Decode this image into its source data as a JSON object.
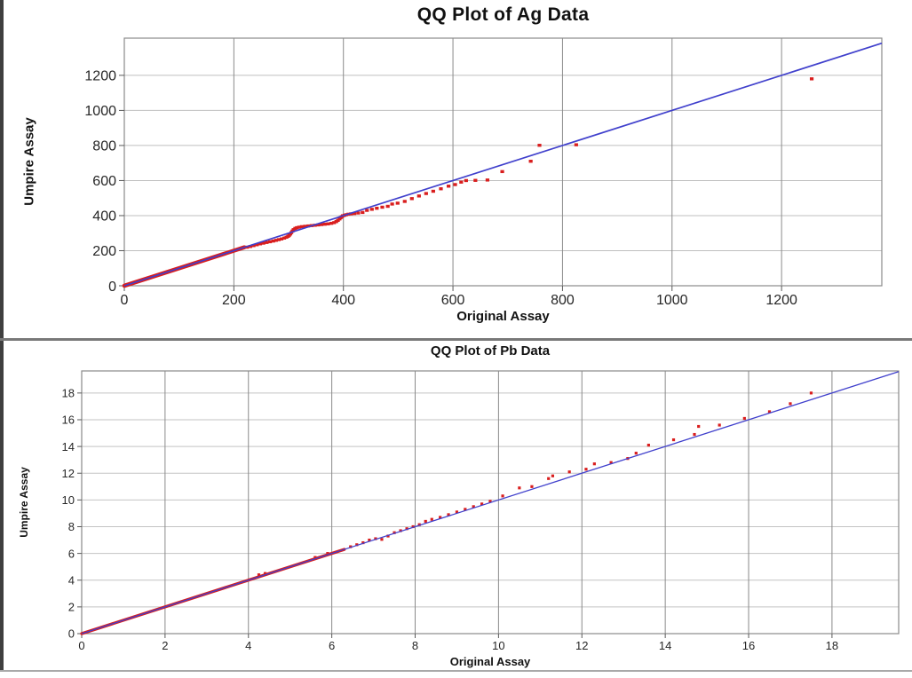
{
  "page": {
    "background": "#ffffff"
  },
  "chart_data": [
    {
      "type": "scatter",
      "title": "QQ Plot of Ag Data",
      "xlabel": "Original Assay",
      "ylabel": "Umpire Assay",
      "xlim": [
        0,
        1383
      ],
      "ylim": [
        0,
        1412
      ],
      "xticks": [
        0,
        200,
        400,
        600,
        800,
        1000,
        1200
      ],
      "yticks": [
        0,
        200,
        400,
        600,
        800,
        1000,
        1200
      ],
      "grid": true,
      "legend": "none",
      "colors": {
        "points": "#d91e1e",
        "reference_line": "#4040cc"
      },
      "series": [
        {
          "name": "Ag quantile pairs",
          "marker": "square",
          "color": "#d91e1e",
          "dense_run": {
            "from": [
              0,
              0
            ],
            "to": [
              219,
              219
            ]
          },
          "points": [
            [
              224,
              220
            ],
            [
              230,
              224
            ],
            [
              236,
              229
            ],
            [
              242,
              234
            ],
            [
              248,
              239
            ],
            [
              254,
              243
            ],
            [
              260,
              247
            ],
            [
              266,
              251
            ],
            [
              272,
              255
            ],
            [
              277,
              259
            ],
            [
              282,
              263
            ],
            [
              287,
              267
            ],
            [
              292,
              272
            ],
            [
              296,
              277
            ],
            [
              299,
              282
            ],
            [
              301,
              288
            ],
            [
              303,
              295
            ],
            [
              305,
              303
            ],
            [
              307,
              312
            ],
            [
              309,
              320
            ],
            [
              312,
              327
            ],
            [
              315,
              331
            ],
            [
              319,
              334
            ],
            [
              324,
              337
            ],
            [
              330,
              339
            ],
            [
              336,
              341
            ],
            [
              342,
              343
            ],
            [
              348,
              345
            ],
            [
              354,
              347
            ],
            [
              360,
              349
            ],
            [
              366,
              351
            ],
            [
              372,
              353
            ],
            [
              378,
              356
            ],
            [
              383,
              360
            ],
            [
              387,
              366
            ],
            [
              390,
              373
            ],
            [
              393,
              381
            ],
            [
              395,
              388
            ],
            [
              397,
              394
            ],
            [
              399,
              399
            ],
            [
              402,
              402
            ],
            [
              405,
              405
            ],
            [
              409,
              408
            ],
            [
              414,
              410
            ],
            [
              420,
              412
            ],
            [
              427,
              415
            ],
            [
              435,
              418
            ],
            [
              443,
              430
            ],
            [
              452,
              436
            ],
            [
              461,
              442
            ],
            [
              471,
              448
            ],
            [
              481,
              453
            ],
            [
              489,
              466
            ],
            [
              499,
              471
            ],
            [
              512,
              481
            ],
            [
              525,
              497
            ],
            [
              538,
              512
            ],
            [
              551,
              526
            ],
            [
              564,
              539
            ],
            [
              578,
              553
            ],
            [
              592,
              568
            ],
            [
              604,
              577
            ],
            [
              615,
              591
            ],
            [
              624,
              600
            ],
            [
              641,
              601
            ],
            [
              663,
              603
            ],
            [
              690,
              651
            ],
            [
              742,
              710
            ],
            [
              758,
              801
            ],
            [
              825,
              804
            ],
            [
              1255,
              1180
            ]
          ]
        },
        {
          "name": "y = x reference line",
          "type": "line",
          "color": "#4040cc",
          "points": [
            [
              0,
              0
            ],
            [
              1383,
              1383
            ]
          ]
        }
      ]
    },
    {
      "type": "scatter",
      "title": "QQ Plot of Pb Data",
      "xlabel": "Original Assay",
      "ylabel": "Umpire Assay",
      "xlim": [
        0,
        19.6
      ],
      "ylim": [
        0,
        19.65
      ],
      "xticks": [
        0,
        2,
        4,
        6,
        8,
        10,
        12,
        14,
        16,
        18
      ],
      "yticks": [
        0,
        2,
        4,
        6,
        8,
        10,
        12,
        14,
        16,
        18
      ],
      "grid": true,
      "legend": "none",
      "colors": {
        "points": "#d91e1e",
        "reference_line": "#4040cc"
      },
      "series": [
        {
          "name": "Pb quantile pairs",
          "marker": "square",
          "color": "#d91e1e",
          "dense_run": {
            "from": [
              0,
              0
            ],
            "to": [
              6.3,
              6.3
            ]
          },
          "points": [
            [
              4.25,
              4.4
            ],
            [
              4.4,
              4.5
            ],
            [
              5.6,
              5.7
            ],
            [
              5.9,
              6.0
            ],
            [
              6.45,
              6.5
            ],
            [
              6.6,
              6.65
            ],
            [
              6.75,
              6.8
            ],
            [
              6.9,
              7.0
            ],
            [
              7.05,
              7.1
            ],
            [
              7.2,
              7.05
            ],
            [
              7.35,
              7.3
            ],
            [
              7.5,
              7.55
            ],
            [
              7.65,
              7.7
            ],
            [
              7.8,
              7.85
            ],
            [
              7.95,
              8.0
            ],
            [
              8.1,
              8.15
            ],
            [
              8.25,
              8.4
            ],
            [
              8.4,
              8.55
            ],
            [
              8.6,
              8.7
            ],
            [
              8.8,
              8.9
            ],
            [
              9.0,
              9.1
            ],
            [
              9.2,
              9.3
            ],
            [
              9.4,
              9.5
            ],
            [
              9.6,
              9.7
            ],
            [
              9.8,
              9.9
            ],
            [
              10.1,
              10.3
            ],
            [
              10.5,
              10.9
            ],
            [
              10.8,
              11.0
            ],
            [
              11.2,
              11.6
            ],
            [
              11.3,
              11.8
            ],
            [
              11.7,
              12.1
            ],
            [
              12.1,
              12.3
            ],
            [
              12.3,
              12.7
            ],
            [
              12.7,
              12.8
            ],
            [
              13.1,
              13.1
            ],
            [
              13.3,
              13.5
            ],
            [
              13.6,
              14.1
            ],
            [
              14.2,
              14.5
            ],
            [
              14.7,
              14.9
            ],
            [
              14.8,
              15.5
            ],
            [
              15.3,
              15.6
            ],
            [
              15.9,
              16.1
            ],
            [
              16.5,
              16.6
            ],
            [
              17.0,
              17.2
            ],
            [
              17.5,
              18.0
            ]
          ]
        },
        {
          "name": "y = x reference line",
          "type": "line",
          "color": "#4040cc",
          "points": [
            [
              0,
              0
            ],
            [
              19.6,
              19.6
            ]
          ]
        }
      ]
    }
  ]
}
